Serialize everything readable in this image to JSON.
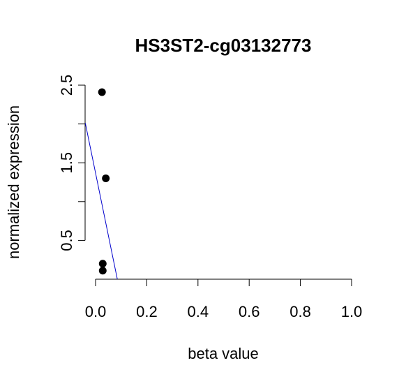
{
  "chart_data": {
    "type": "scatter",
    "title": "HS3ST2-cg03132773",
    "xlabel": "beta value",
    "ylabel": "normalized expression",
    "xlim": [
      0.0,
      1.0
    ],
    "ylim": [
      0.0,
      2.5
    ],
    "x_ticks": [
      "0.0",
      "0.2",
      "0.4",
      "0.6",
      "0.8",
      "1.0"
    ],
    "y_ticks": [
      "0.5",
      "1.5",
      "2.5"
    ],
    "points": [
      {
        "x": 0.025,
        "y": 2.41
      },
      {
        "x": 0.04,
        "y": 1.3
      },
      {
        "x": 0.028,
        "y": 0.2
      },
      {
        "x": 0.028,
        "y": 0.11
      }
    ],
    "fit_line": {
      "x": [
        -0.04,
        0.085
      ],
      "y": [
        2.01,
        0.0
      ]
    },
    "colors": {
      "points": "#000000",
      "fit_line": "#0000cc"
    },
    "grid": false,
    "legend": "none"
  }
}
